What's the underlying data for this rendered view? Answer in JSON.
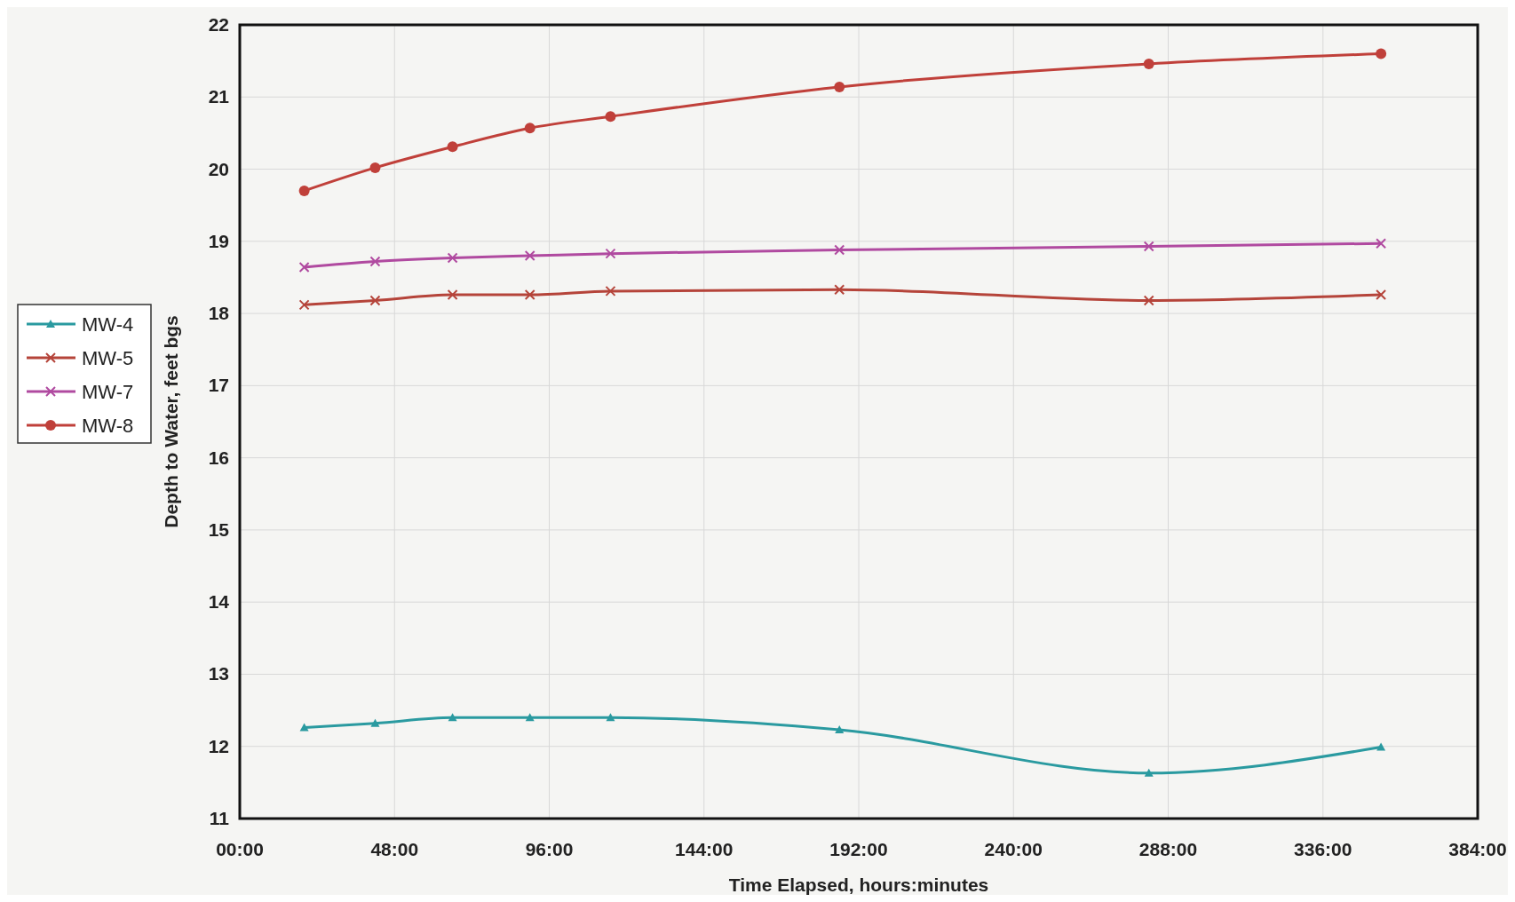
{
  "chart_data": {
    "type": "line",
    "xlabel": "Time Elapsed, hours:minutes",
    "ylabel": "Depth to Water, feet bgs",
    "x": [
      20,
      42,
      66,
      90,
      115,
      186,
      282,
      354
    ],
    "xlim": [
      0,
      384
    ],
    "xticks": [
      {
        "value": 0,
        "label": "00:00"
      },
      {
        "value": 48,
        "label": "48:00"
      },
      {
        "value": 96,
        "label": "96:00"
      },
      {
        "value": 144,
        "label": "144:00"
      },
      {
        "value": 192,
        "label": "192:00"
      },
      {
        "value": 240,
        "label": "240:00"
      },
      {
        "value": 288,
        "label": "288:00"
      },
      {
        "value": 336,
        "label": "336:00"
      },
      {
        "value": 384,
        "label": "384:00"
      }
    ],
    "ylim": [
      11,
      22
    ],
    "yticks": [
      11,
      12,
      13,
      14,
      15,
      16,
      17,
      18,
      19,
      20,
      21,
      22
    ],
    "grid": true,
    "legend": "left",
    "line_style": "solid",
    "series": [
      {
        "name": "MW-4",
        "color": "#2a9aa0",
        "marker": "triangle",
        "values": [
          12.26,
          12.32,
          12.4,
          12.4,
          12.4,
          12.23,
          11.63,
          11.99
        ]
      },
      {
        "name": "MW-5",
        "color": "#b5443a",
        "marker": "cross",
        "values": [
          18.12,
          18.18,
          18.26,
          18.26,
          18.31,
          18.33,
          18.18,
          18.26
        ]
      },
      {
        "name": "MW-7",
        "color": "#b04aa0",
        "marker": "cross",
        "values": [
          18.64,
          18.72,
          18.77,
          18.8,
          18.83,
          18.88,
          18.93,
          18.97
        ]
      },
      {
        "name": "MW-8",
        "color": "#c0403a",
        "marker": "circle",
        "values": [
          19.7,
          20.02,
          20.31,
          20.57,
          20.73,
          21.14,
          21.46,
          21.6
        ]
      }
    ]
  }
}
